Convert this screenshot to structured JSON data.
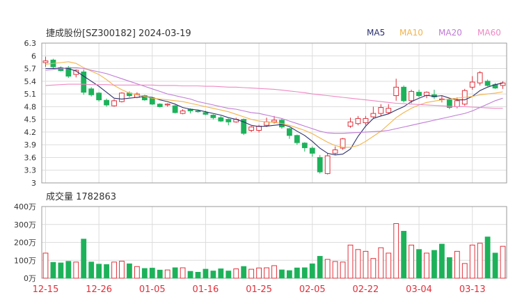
{
  "header": {
    "title": "捷成股份[SZ300182] 2024-03-19"
  },
  "legend": [
    {
      "name": "MA5",
      "color": "#2a2f6e"
    },
    {
      "name": "MA10",
      "color": "#f2b34a"
    },
    {
      "name": "MA20",
      "color": "#c07ad6"
    },
    {
      "name": "MA60",
      "color": "#ee88c2"
    }
  ],
  "volume_panel": {
    "title": "成交量 1782863"
  },
  "colors": {
    "up": "#e0303a",
    "down": "#1db25a",
    "grid": "#dcdcdc",
    "axis": "#333333",
    "date_label": "#e0303a"
  },
  "chart_data": [
    {
      "type": "candlestick",
      "title": "捷成股份[SZ300182] 2024-03-19",
      "ylim": [
        3.0,
        6.3
      ],
      "yticks": [
        "6.3",
        "6",
        "5.7",
        "5.4",
        "5.1",
        "4.8",
        "4.5",
        "4.2",
        "3.9",
        "3.6",
        "3.3",
        "3"
      ],
      "x_tick_labels": [
        {
          "index": 0,
          "label": "12-15"
        },
        {
          "index": 7,
          "label": "12-26"
        },
        {
          "index": 14,
          "label": "01-05"
        },
        {
          "index": 21,
          "label": "01-16"
        },
        {
          "index": 28,
          "label": "01-25"
        },
        {
          "index": 35,
          "label": "02-05"
        },
        {
          "index": 42,
          "label": "02-22"
        },
        {
          "index": 49,
          "label": "03-04"
        },
        {
          "index": 56,
          "label": "03-13"
        }
      ],
      "ohlc": [
        [
          5.84,
          5.88,
          5.98,
          5.74
        ],
        [
          5.9,
          5.74,
          5.93,
          5.7
        ],
        [
          5.72,
          5.65,
          5.75,
          5.63
        ],
        [
          5.72,
          5.52,
          5.76,
          5.48
        ],
        [
          5.56,
          5.66,
          5.68,
          5.49
        ],
        [
          5.62,
          5.14,
          5.68,
          5.08
        ],
        [
          5.22,
          5.08,
          5.26,
          5.04
        ],
        [
          5.12,
          4.96,
          5.14,
          4.92
        ],
        [
          4.95,
          4.84,
          4.99,
          4.8
        ],
        [
          4.82,
          4.94,
          4.98,
          4.8
        ],
        [
          4.92,
          5.12,
          5.14,
          4.9
        ],
        [
          5.12,
          5.06,
          5.16,
          5.02
        ],
        [
          5.02,
          5.1,
          5.14,
          5.0
        ],
        [
          5.06,
          4.96,
          5.08,
          4.94
        ],
        [
          5.0,
          4.86,
          5.02,
          4.84
        ],
        [
          4.86,
          4.8,
          4.88,
          4.78
        ],
        [
          4.84,
          4.86,
          4.88,
          4.8
        ],
        [
          4.82,
          4.66,
          4.84,
          4.64
        ],
        [
          4.64,
          4.7,
          4.74,
          4.62
        ],
        [
          4.74,
          4.7,
          4.76,
          4.64
        ],
        [
          4.7,
          4.68,
          4.72,
          4.66
        ],
        [
          4.66,
          4.62,
          4.7,
          4.6
        ],
        [
          4.6,
          4.54,
          4.62,
          4.5
        ],
        [
          4.54,
          4.46,
          4.58,
          4.44
        ],
        [
          4.5,
          4.44,
          4.52,
          4.36
        ],
        [
          4.44,
          4.5,
          4.54,
          4.42
        ],
        [
          4.5,
          4.17,
          4.52,
          4.13
        ],
        [
          4.24,
          4.32,
          4.34,
          4.2
        ],
        [
          4.24,
          4.34,
          4.37,
          4.19
        ],
        [
          4.36,
          4.44,
          4.54,
          4.32
        ],
        [
          4.44,
          4.48,
          4.58,
          4.4
        ],
        [
          4.48,
          4.32,
          4.52,
          4.28
        ],
        [
          4.28,
          4.12,
          4.3,
          4.04
        ],
        [
          4.12,
          3.95,
          4.14,
          3.9
        ],
        [
          3.94,
          3.83,
          3.96,
          3.74
        ],
        [
          3.82,
          3.7,
          3.86,
          3.62
        ],
        [
          3.6,
          3.26,
          3.66,
          3.22
        ],
        [
          3.22,
          3.64,
          3.7,
          3.2
        ],
        [
          3.7,
          3.78,
          3.86,
          3.66
        ],
        [
          3.82,
          4.04,
          4.06,
          3.78
        ],
        [
          4.34,
          4.44,
          4.54,
          4.3
        ],
        [
          4.4,
          4.52,
          4.58,
          4.36
        ],
        [
          4.42,
          4.52,
          4.58,
          4.36
        ],
        [
          4.56,
          4.64,
          4.8,
          4.52
        ],
        [
          4.64,
          4.78,
          4.86,
          4.58
        ],
        [
          4.66,
          4.76,
          4.86,
          4.64
        ],
        [
          5.06,
          5.26,
          5.46,
          4.94
        ],
        [
          5.26,
          4.94,
          5.3,
          4.9
        ],
        [
          4.94,
          5.16,
          5.2,
          4.88
        ],
        [
          5.14,
          5.06,
          5.2,
          5.02
        ],
        [
          5.06,
          5.14,
          5.16,
          5.0
        ],
        [
          5.08,
          5.03,
          5.2,
          4.98
        ],
        [
          4.98,
          4.98,
          5.06,
          4.9
        ],
        [
          4.96,
          4.78,
          5.0,
          4.74
        ],
        [
          4.8,
          4.94,
          5.02,
          4.76
        ],
        [
          4.86,
          5.18,
          5.22,
          4.82
        ],
        [
          5.26,
          5.38,
          5.52,
          5.2
        ],
        [
          5.36,
          5.6,
          5.64,
          5.3
        ],
        [
          5.4,
          5.3,
          5.44,
          5.28
        ],
        [
          5.32,
          5.24,
          5.36,
          5.22
        ],
        [
          5.3,
          5.36,
          5.4,
          5.22
        ]
      ],
      "series": [
        {
          "name": "MA5",
          "start": 0,
          "values": [
            5.7,
            5.7,
            5.71,
            5.7,
            5.64,
            5.52,
            5.4,
            5.28,
            5.14,
            5.0,
            4.98,
            5.0,
            5.02,
            5.04,
            5.02,
            4.96,
            4.92,
            4.86,
            4.78,
            4.74,
            4.72,
            4.68,
            4.64,
            4.6,
            4.54,
            4.5,
            4.44,
            4.36,
            4.33,
            4.34,
            4.36,
            4.38,
            4.33,
            4.22,
            4.12,
            3.98,
            3.82,
            3.7,
            3.66,
            3.68,
            3.8,
            4.1,
            4.34,
            4.52,
            4.58,
            4.63,
            4.72,
            4.8,
            4.92,
            5.0,
            5.07,
            5.04,
            5.06,
            5.0,
            4.96,
            4.96,
            5.04,
            5.18,
            5.26,
            5.32,
            5.36
          ]
        },
        {
          "name": "MA10",
          "start": 0,
          "values": [
            5.8,
            5.82,
            5.84,
            5.86,
            5.82,
            5.72,
            5.64,
            5.56,
            5.44,
            5.3,
            5.2,
            5.12,
            5.08,
            5.04,
            5.0,
            4.98,
            4.96,
            4.94,
            4.92,
            4.88,
            4.84,
            4.8,
            4.76,
            4.72,
            4.68,
            4.62,
            4.56,
            4.5,
            4.46,
            4.44,
            4.43,
            4.4,
            4.36,
            4.3,
            4.24,
            4.16,
            4.06,
            3.96,
            3.88,
            3.84,
            3.84,
            3.88,
            3.98,
            4.1,
            4.22,
            4.38,
            4.54,
            4.66,
            4.76,
            4.84,
            4.9,
            4.93,
            4.96,
            4.98,
            5.0,
            5.02,
            5.04,
            5.08,
            5.1,
            5.12,
            5.15
          ]
        },
        {
          "name": "MA20",
          "start": 0,
          "values": [
            5.66,
            5.68,
            5.7,
            5.72,
            5.72,
            5.7,
            5.66,
            5.62,
            5.58,
            5.52,
            5.46,
            5.4,
            5.34,
            5.28,
            5.22,
            5.16,
            5.1,
            5.06,
            5.02,
            4.98,
            4.92,
            4.88,
            4.84,
            4.8,
            4.76,
            4.74,
            4.7,
            4.66,
            4.64,
            4.6,
            4.56,
            4.52,
            4.46,
            4.4,
            4.34,
            4.28,
            4.22,
            4.18,
            4.17,
            4.17,
            4.18,
            4.19,
            4.2,
            4.21,
            4.22,
            4.24,
            4.28,
            4.32,
            4.36,
            4.4,
            4.44,
            4.48,
            4.52,
            4.56,
            4.6,
            4.64,
            4.7,
            4.78,
            4.86,
            4.94,
            5.0
          ]
        },
        {
          "name": "MA60",
          "start": 0,
          "values": [
            5.3,
            5.31,
            5.32,
            5.33,
            5.33,
            5.33,
            5.32,
            5.32,
            5.32,
            5.31,
            5.31,
            5.31,
            5.31,
            5.31,
            5.31,
            5.3,
            5.3,
            5.3,
            5.29,
            5.29,
            5.29,
            5.28,
            5.28,
            5.27,
            5.26,
            5.26,
            5.25,
            5.24,
            5.23,
            5.22,
            5.21,
            5.19,
            5.17,
            5.15,
            5.13,
            5.1,
            5.08,
            5.06,
            5.04,
            5.02,
            5.0,
            4.98,
            4.96,
            4.94,
            4.92,
            4.9,
            4.88,
            4.87,
            4.86,
            4.85,
            4.84,
            4.83,
            4.82,
            4.81,
            4.8,
            4.8,
            4.79,
            4.78,
            4.77,
            4.76,
            4.76
          ]
        }
      ]
    },
    {
      "type": "bar",
      "title": "成交量 1782863",
      "ylim": [
        0,
        4000000
      ],
      "yticks": [
        "400万",
        "300万",
        "200万",
        "100万",
        "0万"
      ],
      "up_down": [
        "up",
        "down",
        "down",
        "down",
        "up",
        "down",
        "down",
        "down",
        "down",
        "up",
        "up",
        "down",
        "up",
        "down",
        "down",
        "down",
        "up",
        "down",
        "up",
        "down",
        "down",
        "down",
        "down",
        "down",
        "down",
        "up",
        "down",
        "up",
        "up",
        "up",
        "up",
        "down",
        "down",
        "down",
        "down",
        "down",
        "down",
        "up",
        "up",
        "up",
        "up",
        "up",
        "up",
        "up",
        "up",
        "up",
        "up",
        "down",
        "up",
        "down",
        "up",
        "down",
        "down",
        "down",
        "up",
        "up",
        "up",
        "up",
        "down",
        "down",
        "up"
      ],
      "values": [
        1400000,
        880000,
        850000,
        940000,
        900000,
        2180000,
        900000,
        780000,
        760000,
        900000,
        950000,
        800000,
        650000,
        540000,
        560000,
        450000,
        460000,
        580000,
        580000,
        380000,
        330000,
        500000,
        400000,
        520000,
        400000,
        520000,
        650000,
        500000,
        570000,
        580000,
        700000,
        460000,
        420000,
        570000,
        580000,
        800000,
        1220000,
        1050000,
        930000,
        900000,
        1850000,
        1600000,
        1500000,
        1100000,
        1700000,
        1400000,
        3050000,
        2620000,
        1850000,
        1600000,
        1400000,
        1550000,
        1900000,
        1150000,
        1500000,
        820000,
        1850000,
        1950000,
        2300000,
        1400000,
        1780000
      ]
    }
  ]
}
